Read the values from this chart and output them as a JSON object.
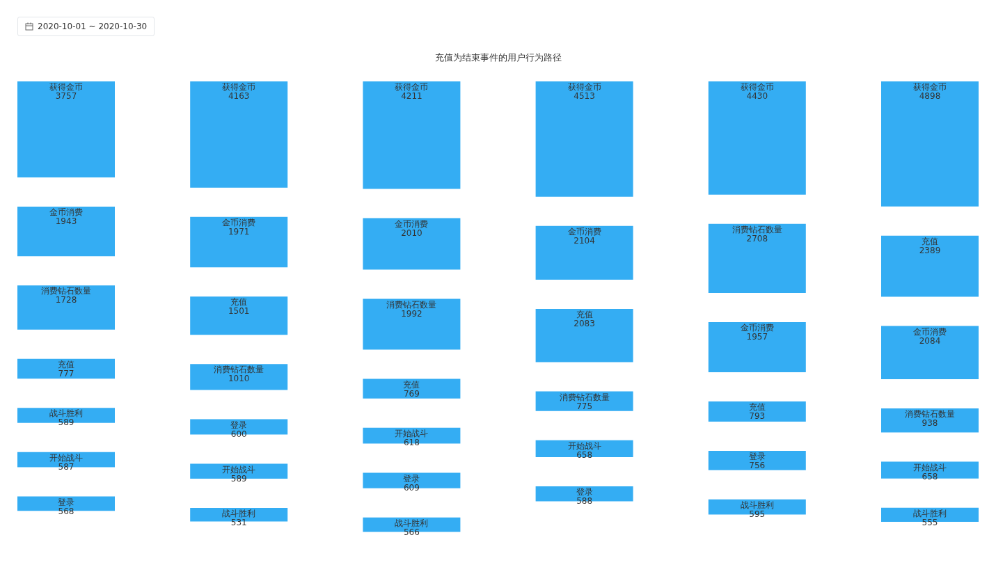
{
  "chart_data": {
    "type": "other",
    "title": "充值为结束事件的用户行为路径",
    "subtitle": "2020-10-01 ~ 2020-10-30",
    "data_labels": true,
    "categories": [
      "获得金币",
      "金币消费",
      "消费钻石数量",
      "充值",
      "战斗胜利",
      "开始战斗",
      "登录"
    ],
    "series": [
      {
        "color": "#34adf3",
        "values": [
          3757,
          1943,
          1728,
          777,
          589,
          587,
          568
        ]
      },
      {
        "color": "#34adf3",
        "values": [
          4163,
          1971,
          1010,
          1501,
          531,
          589,
          600
        ]
      },
      {
        "color": "#34adf3",
        "values": [
          4211,
          2010,
          1992,
          769,
          566,
          618,
          609
        ]
      },
      {
        "color": "#34adf3",
        "values": [
          4513,
          2104,
          775,
          2083,
          null,
          658,
          588
        ]
      },
      {
        "color": "#34adf3",
        "values": [
          4430,
          1957,
          2708,
          793,
          595,
          null,
          756
        ]
      },
      {
        "color": "#34adf3",
        "values": [
          4898,
          2084,
          938,
          2389,
          555,
          658,
          null
        ]
      }
    ]
  }
}
